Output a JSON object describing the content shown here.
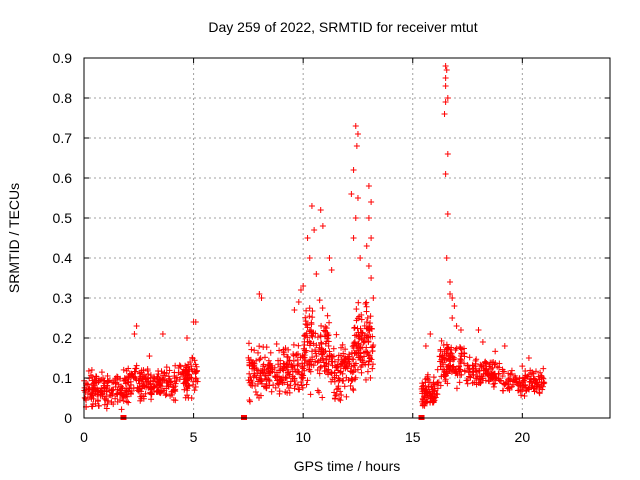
{
  "chart_data": {
    "type": "scatter",
    "title": "Day 259 of 2022, SRMTID for receiver mtut",
    "xlabel": "GPS time / hours",
    "ylabel": "SRMTID / TECUs",
    "xlim": [
      0,
      24
    ],
    "ylim": [
      0,
      0.9
    ],
    "x_ticks": [
      0,
      5,
      10,
      15,
      20
    ],
    "y_ticks": [
      0,
      0.1,
      0.2,
      0.3,
      0.4,
      0.5,
      0.6,
      0.7,
      0.8,
      0.9
    ],
    "x_tick_labels": [
      "0",
      "5",
      "10",
      "15",
      "20"
    ],
    "y_tick_labels": [
      "0",
      "0.1",
      "0.2",
      "0.3",
      "0.4",
      "0.5",
      "0.6",
      "0.7",
      "0.8",
      "0.9"
    ],
    "grid": true,
    "marker": "plus",
    "series_color": "#ff0000",
    "legend": "none",
    "clusters": [
      {
        "x_range": [
          0.0,
          1.0
        ],
        "y_base": 0.07,
        "y_spread": 0.05,
        "count": 90
      },
      {
        "x_range": [
          1.0,
          2.0
        ],
        "y_base": 0.07,
        "y_spread": 0.05,
        "count": 80
      },
      {
        "x_range": [
          2.0,
          3.2
        ],
        "y_base": 0.09,
        "y_spread": 0.06,
        "count": 100
      },
      {
        "x_range": [
          3.2,
          4.2
        ],
        "y_base": 0.09,
        "y_spread": 0.05,
        "count": 80
      },
      {
        "x_range": [
          4.2,
          5.2
        ],
        "y_base": 0.1,
        "y_spread": 0.06,
        "count": 80
      },
      {
        "x_range": [
          7.5,
          9.0
        ],
        "y_base": 0.11,
        "y_spread": 0.07,
        "count": 130
      },
      {
        "x_range": [
          9.0,
          10.0
        ],
        "y_base": 0.12,
        "y_spread": 0.08,
        "count": 90
      },
      {
        "x_range": [
          10.0,
          11.2
        ],
        "y_base": 0.18,
        "y_spread": 0.12,
        "count": 130
      },
      {
        "x_range": [
          11.2,
          12.3
        ],
        "y_base": 0.12,
        "y_spread": 0.08,
        "count": 100
      },
      {
        "x_range": [
          12.3,
          13.2
        ],
        "y_base": 0.18,
        "y_spread": 0.12,
        "count": 120
      },
      {
        "x_range": [
          15.4,
          16.2
        ],
        "y_base": 0.07,
        "y_spread": 0.05,
        "count": 80
      },
      {
        "x_range": [
          16.2,
          17.4
        ],
        "y_base": 0.14,
        "y_spread": 0.06,
        "count": 110
      },
      {
        "x_range": [
          17.4,
          19.0
        ],
        "y_base": 0.11,
        "y_spread": 0.05,
        "count": 110
      },
      {
        "x_range": [
          19.0,
          21.0
        ],
        "y_base": 0.09,
        "y_spread": 0.04,
        "count": 120
      }
    ],
    "peaks": [
      {
        "x": 10.4,
        "y": 0.53
      },
      {
        "x": 10.5,
        "y": 0.47
      },
      {
        "x": 10.8,
        "y": 0.52
      },
      {
        "x": 10.9,
        "y": 0.48
      },
      {
        "x": 10.2,
        "y": 0.45
      },
      {
        "x": 10.3,
        "y": 0.4
      },
      {
        "x": 11.2,
        "y": 0.4
      },
      {
        "x": 11.3,
        "y": 0.37
      },
      {
        "x": 10.6,
        "y": 0.36
      },
      {
        "x": 12.4,
        "y": 0.73
      },
      {
        "x": 12.5,
        "y": 0.71
      },
      {
        "x": 12.45,
        "y": 0.68
      },
      {
        "x": 12.3,
        "y": 0.62
      },
      {
        "x": 12.2,
        "y": 0.56
      },
      {
        "x": 12.5,
        "y": 0.55
      },
      {
        "x": 12.4,
        "y": 0.5
      },
      {
        "x": 12.3,
        "y": 0.45
      },
      {
        "x": 12.6,
        "y": 0.4
      },
      {
        "x": 13.0,
        "y": 0.58
      },
      {
        "x": 13.1,
        "y": 0.54
      },
      {
        "x": 13.0,
        "y": 0.5
      },
      {
        "x": 13.1,
        "y": 0.45
      },
      {
        "x": 12.9,
        "y": 0.43
      },
      {
        "x": 13.0,
        "y": 0.38
      },
      {
        "x": 13.2,
        "y": 0.3
      },
      {
        "x": 13.1,
        "y": 0.35
      },
      {
        "x": 16.5,
        "y": 0.88
      },
      {
        "x": 16.55,
        "y": 0.87
      },
      {
        "x": 16.5,
        "y": 0.85
      },
      {
        "x": 16.5,
        "y": 0.83
      },
      {
        "x": 16.6,
        "y": 0.8
      },
      {
        "x": 16.5,
        "y": 0.79
      },
      {
        "x": 16.45,
        "y": 0.76
      },
      {
        "x": 16.6,
        "y": 0.66
      },
      {
        "x": 16.5,
        "y": 0.61
      },
      {
        "x": 16.6,
        "y": 0.51
      },
      {
        "x": 16.55,
        "y": 0.4
      },
      {
        "x": 16.7,
        "y": 0.34
      },
      {
        "x": 16.7,
        "y": 0.31
      },
      {
        "x": 16.8,
        "y": 0.3
      },
      {
        "x": 16.9,
        "y": 0.28
      },
      {
        "x": 16.8,
        "y": 0.25
      },
      {
        "x": 17.0,
        "y": 0.23
      },
      {
        "x": 17.2,
        "y": 0.22
      },
      {
        "x": 8.0,
        "y": 0.31
      },
      {
        "x": 8.1,
        "y": 0.3
      },
      {
        "x": 9.6,
        "y": 0.27
      },
      {
        "x": 9.8,
        "y": 0.29
      },
      {
        "x": 9.9,
        "y": 0.32
      },
      {
        "x": 10.0,
        "y": 0.33
      },
      {
        "x": 5.0,
        "y": 0.24
      },
      {
        "x": 5.1,
        "y": 0.24
      },
      {
        "x": 2.4,
        "y": 0.23
      },
      {
        "x": 2.3,
        "y": 0.21
      },
      {
        "x": 3.6,
        "y": 0.21
      },
      {
        "x": 4.7,
        "y": 0.2
      },
      {
        "x": 18.0,
        "y": 0.22
      },
      {
        "x": 18.2,
        "y": 0.19
      },
      {
        "x": 19.2,
        "y": 0.18
      },
      {
        "x": 20.3,
        "y": 0.15
      },
      {
        "x": 15.8,
        "y": 0.21
      },
      {
        "x": 15.6,
        "y": 0.18
      }
    ],
    "zero_markers": [
      {
        "x": 1.8,
        "y": 0.0
      },
      {
        "x": 7.3,
        "y": 0.0
      },
      {
        "x": 15.4,
        "y": 0.0
      }
    ]
  }
}
